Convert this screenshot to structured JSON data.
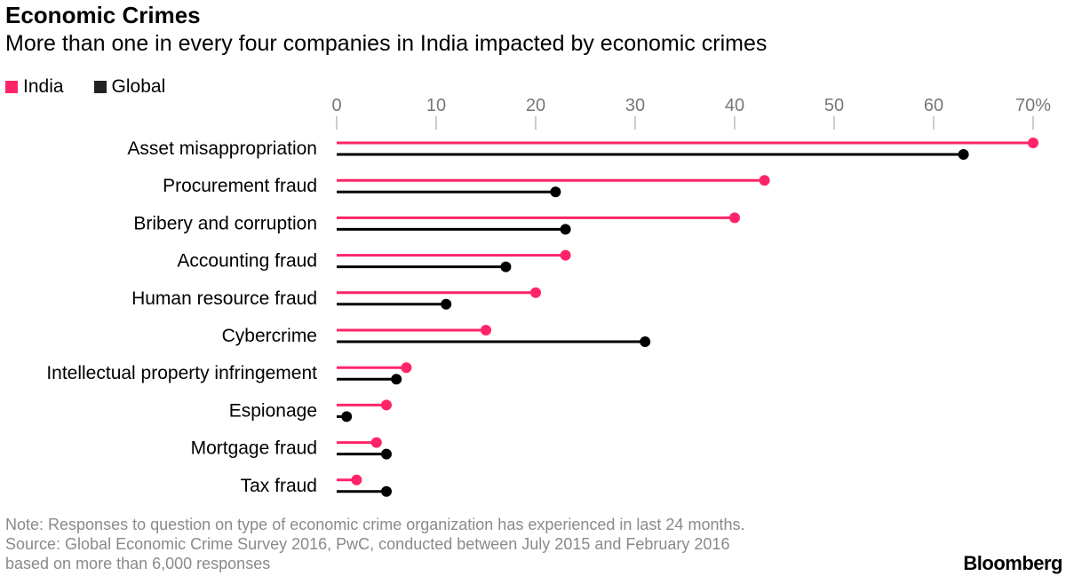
{
  "title": "Economic Crimes",
  "subtitle": "More than one in every four companies in India impacted by economic crimes",
  "notes": [
    "Note: Responses to question on type of economic crime organization has experienced in last 24 months.",
    "Source: Global Economic Crime Survey 2016, PwC, conducted between July 2015 and February 2016",
    "based on more than 6,000 responses"
  ],
  "logo": "Bloomberg",
  "chart_data": {
    "type": "dot-bar",
    "orientation": "horizontal",
    "title": "Economic Crimes",
    "xlim": [
      0,
      70
    ],
    "xticks": [
      0,
      10,
      20,
      30,
      40,
      50,
      60,
      70
    ],
    "xtick_labels": [
      "0",
      "10",
      "20",
      "30",
      "40",
      "50",
      "60",
      "70%"
    ],
    "axis_position": "top",
    "grid": false,
    "legend_position": "top-left",
    "categories": [
      "Asset misappropriation",
      "Procurement fraud",
      "Bribery and corruption",
      "Accounting fraud",
      "Human resource fraud",
      "Cybercrime",
      "Intellectual property infringement",
      "Espionage",
      "Mortgage fraud",
      "Tax fraud"
    ],
    "series": [
      {
        "name": "India",
        "color": "#ff2468",
        "values": [
          70,
          43,
          40,
          23,
          20,
          15,
          7,
          5,
          4,
          2
        ]
      },
      {
        "name": "Global",
        "color": "#000000",
        "values": [
          63,
          22,
          23,
          17,
          11,
          31,
          6,
          1,
          5,
          5
        ]
      }
    ]
  }
}
